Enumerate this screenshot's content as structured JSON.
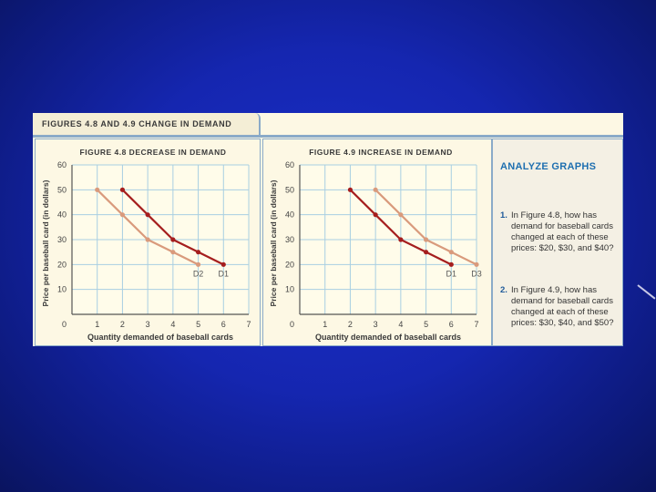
{
  "header": {
    "title": "FIGURES 4.8 AND 4.9  CHANGE IN DEMAND"
  },
  "colors": {
    "dark_curve": "#a51e1e",
    "light_curve": "#d99a7c",
    "grid": "#a8cfe2",
    "axis": "#555555",
    "header_text": "#3a3a3a",
    "analyze_title": "#1e6fb0"
  },
  "analyze": {
    "title": "ANALYZE GRAPHS",
    "questions": [
      {
        "number": "1.",
        "text": "In Figure 4.8, how has demand for baseball cards changed at each of these prices: $20, $30, and $40?"
      },
      {
        "number": "2.",
        "text": "In Figure 4.9, how has demand for baseball cards changed at each of these prices: $30, $40, and $50?"
      }
    ]
  },
  "chart_data": [
    {
      "type": "line",
      "title": "FIGURE 4.8 DECREASE IN DEMAND",
      "xlabel": "Quantity demanded of baseball cards",
      "ylabel": "Price per baseball card (in dollars)",
      "xlim": [
        0,
        7
      ],
      "ylim": [
        0,
        60
      ],
      "x_ticks": [
        1,
        2,
        3,
        4,
        5,
        6,
        7
      ],
      "y_ticks": [
        10,
        20,
        30,
        40,
        50,
        60
      ],
      "origin_label": "0",
      "grid": true,
      "series": [
        {
          "name": "D1",
          "color": "#a51e1e",
          "x": [
            2,
            3,
            4,
            5,
            6
          ],
          "y": [
            50,
            40,
            30,
            25,
            20
          ]
        },
        {
          "name": "D2",
          "color": "#d99a7c",
          "x": [
            1,
            2,
            3,
            4,
            5
          ],
          "y": [
            50,
            40,
            30,
            25,
            20
          ]
        }
      ]
    },
    {
      "type": "line",
      "title": "FIGURE 4.9 INCREASE IN DEMAND",
      "xlabel": "Quantity demanded of baseball cards",
      "ylabel": "Price per baseball card (in dollars)",
      "xlim": [
        0,
        7
      ],
      "ylim": [
        0,
        60
      ],
      "x_ticks": [
        1,
        2,
        3,
        4,
        5,
        6,
        7
      ],
      "y_ticks": [
        10,
        20,
        30,
        40,
        50,
        60
      ],
      "origin_label": "0",
      "grid": true,
      "series": [
        {
          "name": "D1",
          "color": "#a51e1e",
          "x": [
            2,
            3,
            4,
            5,
            6
          ],
          "y": [
            50,
            40,
            30,
            25,
            20
          ]
        },
        {
          "name": "D3",
          "color": "#d99a7c",
          "x": [
            3,
            4,
            5,
            6,
            7
          ],
          "y": [
            50,
            40,
            30,
            25,
            20
          ]
        }
      ]
    }
  ]
}
